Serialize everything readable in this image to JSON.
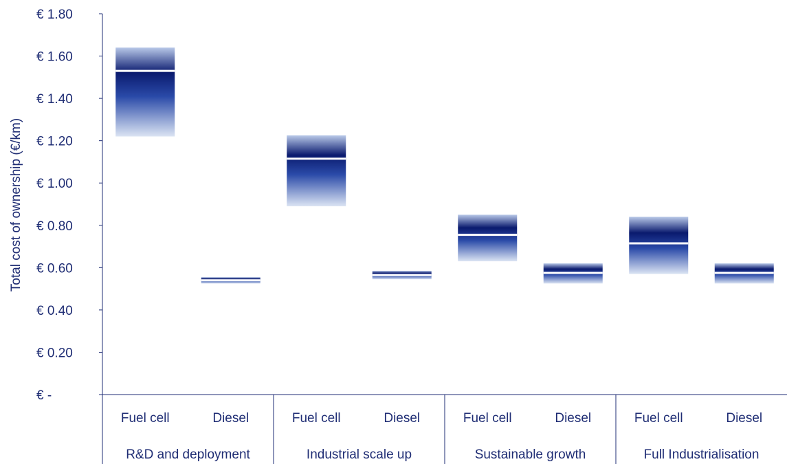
{
  "chart_data": {
    "type": "bar",
    "subtype": "floating-range-with-marker",
    "ylabel": "Total cost of ownership (€/km)",
    "ylim": [
      0,
      1.8
    ],
    "yticks": [
      {
        "value": 0,
        "label": "€ -"
      },
      {
        "value": 0.2,
        "label": "€ 0.20"
      },
      {
        "value": 0.4,
        "label": "€ 0.40"
      },
      {
        "value": 0.6,
        "label": "€ 0.60"
      },
      {
        "value": 0.8,
        "label": "€ 0.80"
      },
      {
        "value": 1.0,
        "label": "€ 1.00"
      },
      {
        "value": 1.2,
        "label": "€ 1.20"
      },
      {
        "value": 1.4,
        "label": "€ 1.40"
      },
      {
        "value": 1.6,
        "label": "€ 1.60"
      },
      {
        "value": 1.8,
        "label": "€ 1.80"
      }
    ],
    "grid": false,
    "colors": {
      "dark": "#0a1a6e",
      "light": "#dbe4f3",
      "marker": "#ffffff",
      "text": "#1f2d74"
    },
    "groups": [
      {
        "name": "R&D and deployment",
        "bars": [
          {
            "label": "Fuel cell",
            "low": 1.22,
            "high": 1.64,
            "mid": 1.53
          },
          {
            "label": "Diesel",
            "low": 0.525,
            "high": 0.555,
            "mid": 0.54
          }
        ]
      },
      {
        "name": "Industrial scale up",
        "bars": [
          {
            "label": "Fuel cell",
            "low": 0.89,
            "high": 1.225,
            "mid": 1.115
          },
          {
            "label": "Diesel",
            "low": 0.545,
            "high": 0.585,
            "mid": 0.565
          }
        ]
      },
      {
        "name": "Sustainable growth",
        "bars": [
          {
            "label": "Fuel cell",
            "low": 0.63,
            "high": 0.85,
            "mid": 0.755
          },
          {
            "label": "Diesel",
            "low": 0.525,
            "high": 0.62,
            "mid": 0.575
          }
        ]
      },
      {
        "name": "Full Industrialisation",
        "bars": [
          {
            "label": "Fuel cell",
            "low": 0.57,
            "high": 0.84,
            "mid": 0.715
          },
          {
            "label": "Diesel",
            "low": 0.525,
            "high": 0.62,
            "mid": 0.575
          }
        ]
      }
    ]
  }
}
